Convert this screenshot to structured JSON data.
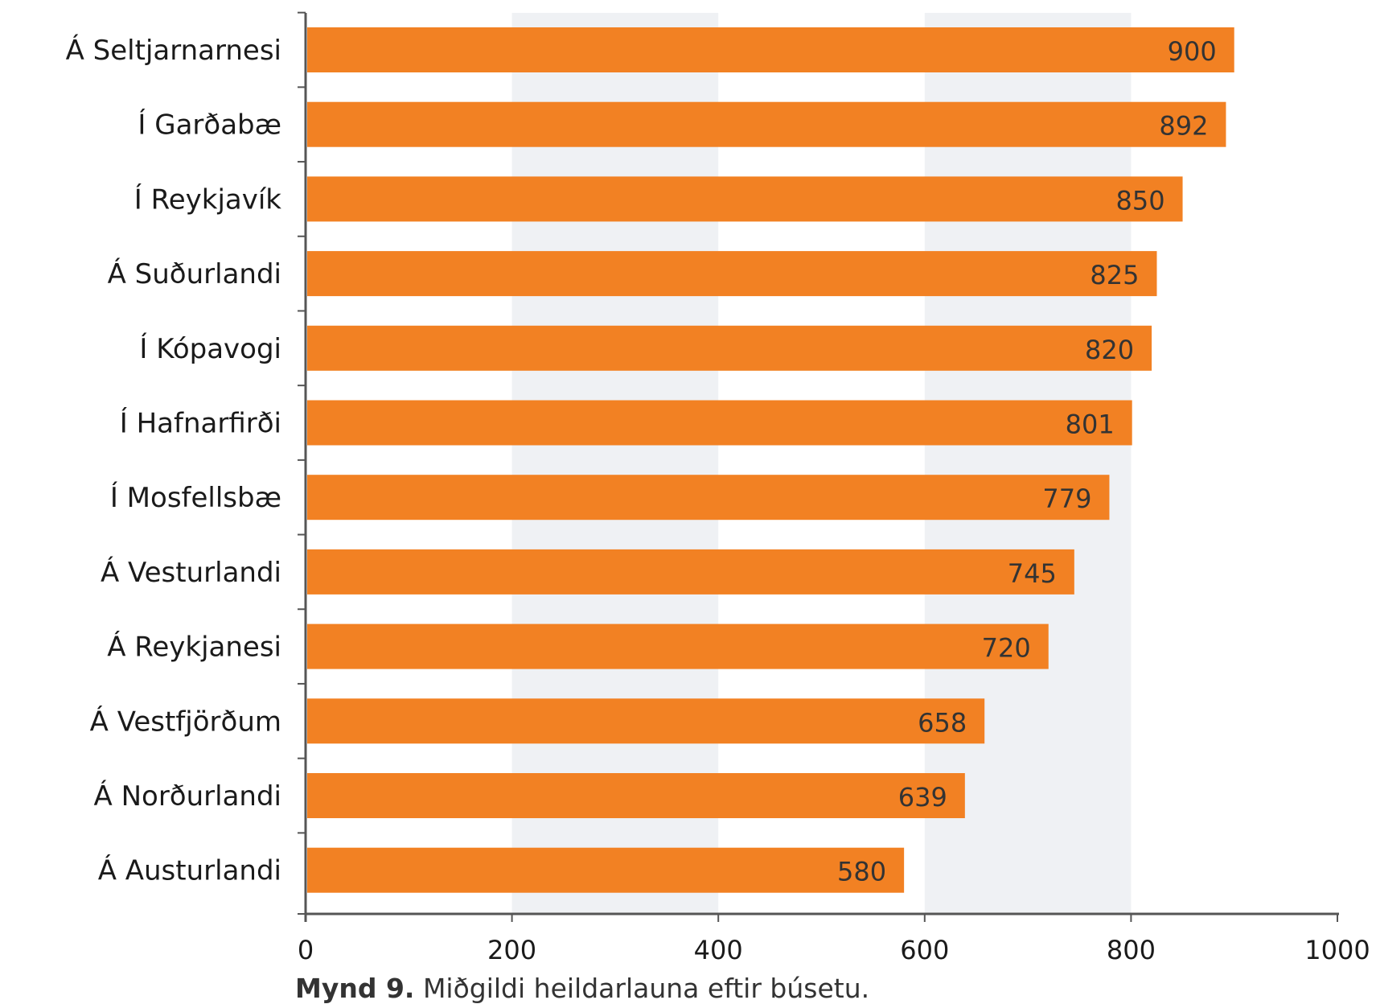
{
  "chart_data": {
    "type": "bar",
    "orientation": "horizontal",
    "categories": [
      "Á Seltjarnarnesi",
      "Í Garðabæ",
      "Í Reykjavík",
      "Á Suðurlandi",
      "Í Kópavogi",
      "Í Hafnarfirði",
      "Í Mosfellsbæ",
      "Á Vesturlandi",
      "Á Reykjanesi",
      "Á Vestfjörðum",
      "Á Norðurlandi",
      "Á Austurlandi"
    ],
    "values": [
      900,
      892,
      850,
      825,
      820,
      801,
      779,
      745,
      720,
      658,
      639,
      580
    ],
    "xlim": [
      0,
      1000
    ],
    "xticks": [
      "0",
      "200",
      "400",
      "600",
      "800",
      "1000"
    ],
    "grid": "alternating vertical bands",
    "data_labels": true
  },
  "colors": {
    "bar": "#f28123",
    "band": "#eff1f4",
    "axis": "#555555",
    "text": "#1a1a1a"
  },
  "caption": {
    "label": "Mynd 9.",
    "text": " Miðgildi heildarlauna eftir búsetu."
  }
}
